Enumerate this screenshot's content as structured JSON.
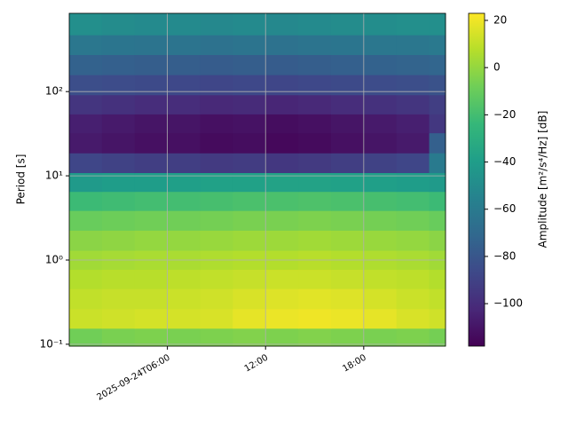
{
  "chart_data": {
    "type": "heatmap",
    "ylabel": "Period [s]",
    "x": [
      "2025-09-24T00:00",
      "2025-09-24T02:00",
      "2025-09-24T04:00",
      "2025-09-24T06:00",
      "2025-09-24T08:00",
      "2025-09-24T10:00",
      "2025-09-24T12:00",
      "2025-09-24T14:00",
      "2025-09-24T16:00",
      "2025-09-24T18:00",
      "2025-09-24T20:00",
      "2025-09-24T22:00"
    ],
    "y": [
      0.12,
      0.2,
      0.35,
      0.6,
      1,
      1.7,
      3,
      5,
      8.5,
      14,
      25,
      42,
      70,
      120,
      210,
      360,
      620
    ],
    "z": [
      [
        -8,
        -6,
        -5,
        -6,
        -5,
        -4,
        -5,
        -4,
        -5,
        -6,
        -5,
        -7
      ],
      [
        12,
        13,
        14,
        14,
        15,
        18,
        19,
        20,
        19,
        18,
        15,
        13
      ],
      [
        10,
        11,
        11,
        12,
        13,
        15,
        16,
        17,
        16,
        14,
        12,
        10
      ],
      [
        7,
        8,
        8,
        9,
        10,
        11,
        12,
        12,
        11,
        10,
        9,
        7
      ],
      [
        3,
        4,
        5,
        5,
        6,
        7,
        7,
        8,
        7,
        6,
        5,
        3
      ],
      [
        -2,
        -1,
        0,
        0,
        1,
        2,
        2,
        3,
        2,
        1,
        0,
        -2
      ],
      [
        -10,
        -9,
        -8,
        -8,
        -7,
        -6,
        -6,
        -5,
        -6,
        -7,
        -8,
        -10
      ],
      [
        -22,
        -21,
        -20,
        -20,
        -19,
        -18,
        -18,
        -17,
        -18,
        -19,
        -20,
        -22
      ],
      [
        -42,
        -40,
        -40,
        -39,
        -38,
        -38,
        -37,
        -37,
        -38,
        -39,
        -40,
        -42
      ],
      [
        -88,
        -90,
        -92,
        -92,
        -94,
        -93,
        -95,
        -94,
        -92,
        -90,
        -88,
        -60
      ],
      [
        -108,
        -110,
        -112,
        -112,
        -114,
        -113,
        -115,
        -114,
        -112,
        -110,
        -108,
        -75
      ],
      [
        -106,
        -108,
        -110,
        -110,
        -112,
        -111,
        -113,
        -112,
        -110,
        -108,
        -106,
        -95
      ],
      [
        -96,
        -98,
        -100,
        -100,
        -102,
        -101,
        -103,
        -102,
        -100,
        -98,
        -96,
        -92
      ],
      [
        -84,
        -85,
        -86,
        -87,
        -88,
        -87,
        -88,
        -87,
        -86,
        -85,
        -84,
        -82
      ],
      [
        -74,
        -75,
        -76,
        -76,
        -77,
        -76,
        -77,
        -76,
        -75,
        -74,
        -73,
        -72
      ],
      [
        -62,
        -63,
        -64,
        -64,
        -65,
        -64,
        -65,
        -64,
        -63,
        -62,
        -62,
        -61
      ],
      [
        -48,
        -50,
        -51,
        -51,
        -52,
        -51,
        -52,
        -51,
        -50,
        -49,
        -48,
        -48
      ]
    ],
    "xlim": [
      "2025-09-24T00:00",
      "2025-09-24T23:00"
    ],
    "xticks": [
      {
        "value": "2025-09-24T06:00",
        "label": "2025-09-24T06:00"
      },
      {
        "value": "2025-09-24T12:00",
        "label": "12:00"
      },
      {
        "value": "2025-09-24T18:00",
        "label": "18:00"
      }
    ],
    "ylim": [
      0.095,
      850
    ],
    "yscale": "log",
    "yticks": [
      {
        "value": 0.1,
        "label": "10⁻¹"
      },
      {
        "value": 1,
        "label": "10⁰"
      },
      {
        "value": 10,
        "label": "10¹"
      },
      {
        "value": 100,
        "label": "10²"
      }
    ],
    "grid": true,
    "colormap": "viridis",
    "colorbar": {
      "label": "Amplitude [m²/s⁴/Hz] [dB]",
      "lim": [
        -118,
        23
      ],
      "ticks": [
        20,
        0,
        {
          "value": -20,
          "label": "−20"
        },
        {
          "value": -40,
          "label": "−40"
        },
        {
          "value": -60,
          "label": "−60"
        },
        {
          "value": -80,
          "label": "−80"
        },
        {
          "value": -100,
          "label": "−100"
        }
      ]
    }
  }
}
